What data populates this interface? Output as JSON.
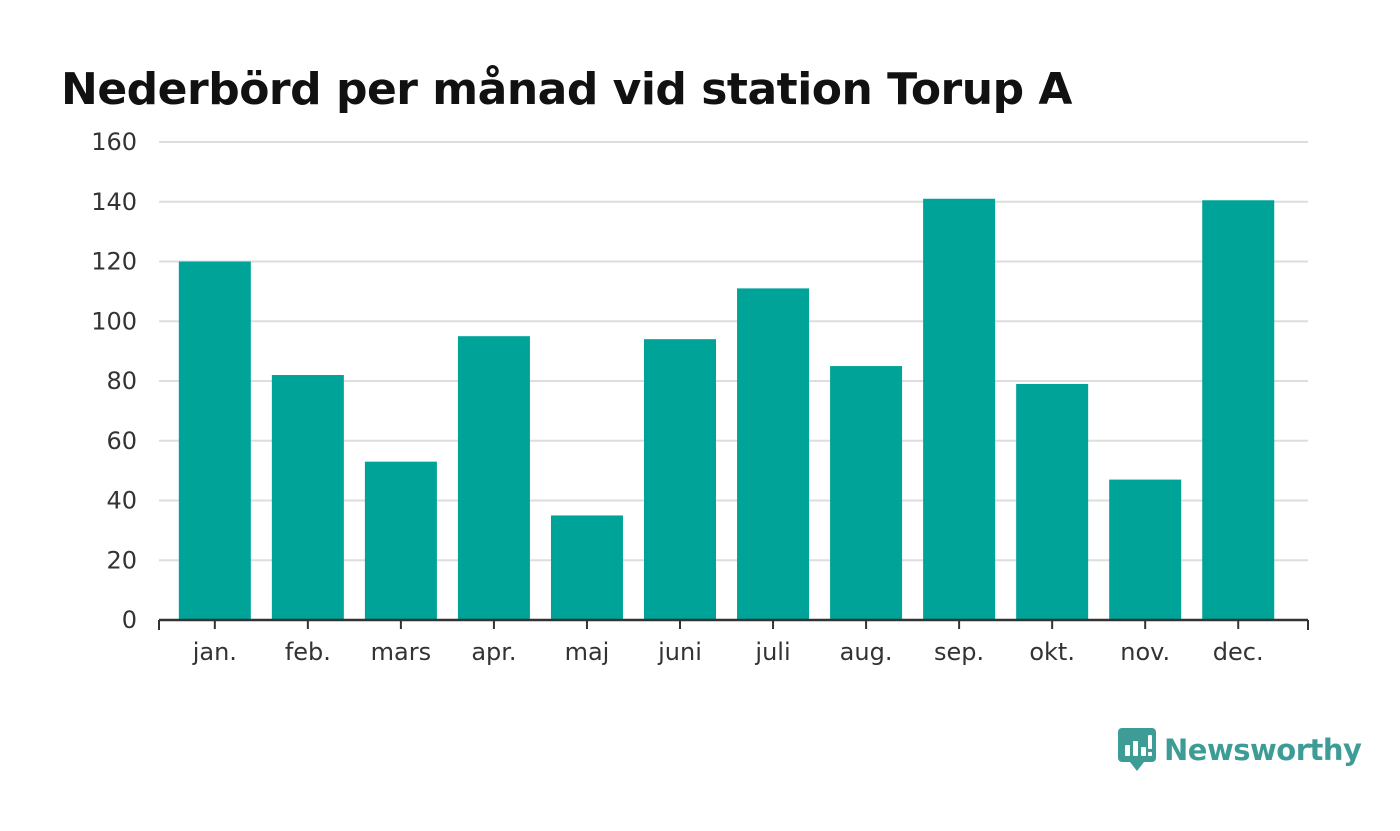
{
  "chart_data": {
    "type": "bar",
    "title": "Nederbörd per månad vid station Torup A",
    "categories": [
      "jan.",
      "feb.",
      "mars",
      "apr.",
      "maj",
      "juni",
      "juli",
      "aug.",
      "sep.",
      "okt.",
      "nov.",
      "dec."
    ],
    "values": [
      120,
      82,
      53,
      95,
      35,
      94,
      111,
      85,
      141,
      79,
      47,
      140.5
    ],
    "ylim": [
      0,
      160
    ],
    "yticks": [
      "0",
      "20",
      "40",
      "60",
      "80",
      "100",
      "120",
      "140",
      "160"
    ],
    "grid": true,
    "legend": "none",
    "bar_color": "#00a398",
    "grid_color": "#dddddd",
    "axis_color": "#333333"
  },
  "branding": {
    "logo_text": "Newsworthy",
    "logo_icon": "newsworthy-chart-bubble-icon",
    "brand_color": "#3d9d96"
  }
}
